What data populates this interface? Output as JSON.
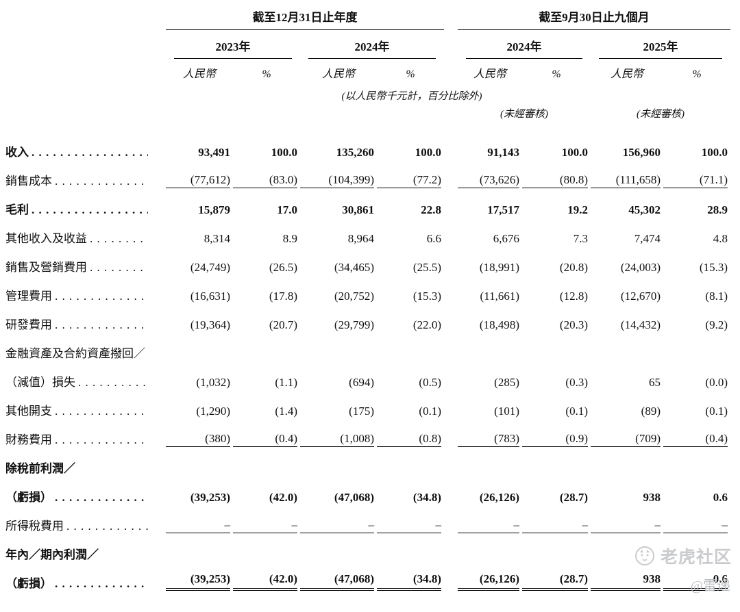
{
  "table": {
    "header": {
      "group1": "截至12月31日止年度",
      "group2": "截至9月30日止九個月",
      "years": [
        "2023年",
        "2024年",
        "2024年",
        "2025年"
      ],
      "col_currency": "人民幣",
      "col_pct": "%",
      "note_units": "(以人民幣千元計，百分比除外)",
      "note_unaudited": "(未經審核)"
    },
    "rows": [
      {
        "label": "收入",
        "dots": true,
        "bold": true,
        "values": [
          "93,491",
          "100.0",
          "135,260",
          "100.0",
          "91,143",
          "100.0",
          "156,960",
          "100.0"
        ]
      },
      {
        "label": "銷售成本",
        "dots": true,
        "values": [
          "(77,612)",
          "(83.0)",
          "(104,399)",
          "(77.2)",
          "(73,626)",
          "(80.8)",
          "(111,658)",
          "(71.1)"
        ],
        "rule": "single"
      },
      {
        "label": "毛利",
        "dots": true,
        "bold": true,
        "values": [
          "15,879",
          "17.0",
          "30,861",
          "22.8",
          "17,517",
          "19.2",
          "45,302",
          "28.9"
        ]
      },
      {
        "label": "其他收入及收益",
        "dots": true,
        "values": [
          "8,314",
          "8.9",
          "8,964",
          "6.6",
          "6,676",
          "7.3",
          "7,474",
          "4.8"
        ]
      },
      {
        "label": "銷售及營銷費用",
        "dots": true,
        "values": [
          "(24,749)",
          "(26.5)",
          "(34,465)",
          "(25.5)",
          "(18,991)",
          "(20.8)",
          "(24,003)",
          "(15.3)"
        ]
      },
      {
        "label": "管理費用",
        "dots": true,
        "values": [
          "(16,631)",
          "(17.8)",
          "(20,752)",
          "(15.3)",
          "(11,661)",
          "(12.8)",
          "(12,670)",
          "(8.1)"
        ]
      },
      {
        "label": "研發費用",
        "dots": true,
        "values": [
          "(19,364)",
          "(20.7)",
          "(29,799)",
          "(22.0)",
          "(18,498)",
          "(20.3)",
          "(14,432)",
          "(9.2)"
        ]
      },
      {
        "label": "金融資產及合約資產撥回／",
        "dots": false,
        "values": null
      },
      {
        "label": "（減值）損失",
        "dots": true,
        "values": [
          "(1,032)",
          "(1.1)",
          "(694)",
          "(0.5)",
          "(285)",
          "(0.3)",
          "65",
          "(0.0)"
        ]
      },
      {
        "label": "其他開支",
        "dots": true,
        "values": [
          "(1,290)",
          "(1.4)",
          "(175)",
          "(0.1)",
          "(101)",
          "(0.1)",
          "(89)",
          "(0.1)"
        ]
      },
      {
        "label": "財務費用",
        "dots": true,
        "values": [
          "(380)",
          "(0.4)",
          "(1,008)",
          "(0.8)",
          "(783)",
          "(0.9)",
          "(709)",
          "(0.4)"
        ],
        "rule": "single"
      },
      {
        "label": "除稅前利潤／",
        "dots": false,
        "bold": true,
        "values": null
      },
      {
        "label": "（虧損）",
        "dots": true,
        "bold": true,
        "values": [
          "(39,253)",
          "(42.0)",
          "(47,068)",
          "(34.8)",
          "(26,126)",
          "(28.7)",
          "938",
          "0.6"
        ]
      },
      {
        "label": "所得稅費用",
        "dots": true,
        "values": [
          "–",
          "–",
          "–",
          "–",
          "–",
          "–",
          "–",
          "–"
        ],
        "rule": "single"
      },
      {
        "label": "年內／期內利潤／",
        "dots": false,
        "bold": true,
        "values": null
      },
      {
        "label": "（虧損）",
        "dots": true,
        "bold": true,
        "values": [
          "(39,253)",
          "(42.0)",
          "(47,068)",
          "(34.8)",
          "(26,126)",
          "(28.7)",
          "938",
          "0.6"
        ],
        "rule": "double"
      }
    ]
  },
  "watermark": {
    "brand": "老虎社区",
    "handle": "@雷递"
  }
}
